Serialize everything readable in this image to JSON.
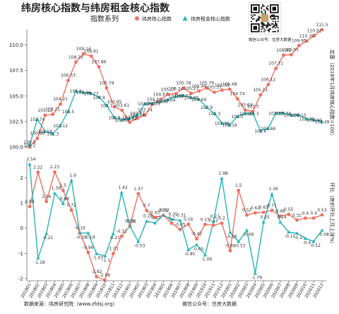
{
  "header": {
    "title": "纬房核心指数与纬房租金核心指数",
    "subtitle": "指数系列"
  },
  "qr": {
    "caption": "微信公众号：住房大数据"
  },
  "footer": {
    "source": "数据来源：纬房研究院（www.zfdsj.org）",
    "wechat": "微信公众号：住房大数据"
  },
  "colors": {
    "sale": "#f07060",
    "rent": "#26b5b5"
  },
  "chart_data": [
    {
      "type": "line",
      "title": "纬房核心指数与纬房租金核心指数",
      "subtitle": "指数系列",
      "ylabel": "定基（2018年1月纬房核心指数=100）",
      "ylim": [
        100,
        111.5
      ],
      "yticks": [
        100.0,
        102.5,
        105.0,
        107.5,
        110.0
      ],
      "legend": "top",
      "grid": false,
      "series": [
        {
          "name": "纬房核心指数",
          "values": [
            100.0,
            100.86,
            103.12,
            103.21,
            104.21,
            106.53,
            108.33,
            109.14,
            108.91,
            107.86,
            105.79,
            103.95,
            103.61,
            102.43,
            102.82,
            103.14,
            104.2,
            104.67,
            105.17,
            105.24,
            105.78,
            105.27,
            105.49,
            105.79,
            105.37,
            105.58,
            105.68,
            104.74,
            103.63,
            103.5,
            105.11,
            106.12,
            107.71,
            109.01,
            109.05,
            109.95,
            110.39,
            110.92,
            111.5
          ],
          "labels": [
            "100.0",
            "100.86",
            "103.12",
            "103.21",
            "104.21",
            "106.53",
            "108.33",
            "109.14",
            "108.91",
            "107.86",
            "105.79",
            "103.95",
            "103.61",
            "102.43",
            "102.82",
            "103.14",
            "104.2",
            "104.67",
            "105.17",
            "105.24",
            "105.78",
            "105.27",
            "105.49",
            "105.79",
            "105.37",
            "105.58",
            "105.68",
            "104.74",
            "103.63",
            "103.5",
            "105.11",
            "106.12",
            "107.71",
            "109.01",
            "109.05",
            "109.95",
            "110.39",
            "110.92",
            "111.5"
          ]
        },
        {
          "name": "纬房租金核心指数",
          "values": [
            100.2,
            102.74,
            101.56,
            101.3,
            102.12,
            103.5,
            105.5,
            105.36,
            105.27,
            104.9,
            104.1,
            102.9,
            102.68,
            102.82,
            103.14,
            104.26,
            104.28,
            104.46,
            104.64,
            104.98,
            105.07,
            104.85,
            104.69,
            103.9,
            103.3,
            102.36,
            102.19,
            103.0,
            103.3,
            103.3,
            101.6,
            101.84,
            103.33,
            103.34,
            103.14,
            103.15,
            102.76,
            102.66,
            102.49
          ],
          "labels": [
            "100.2",
            "102.74",
            "101.56",
            "101.3",
            "102.12",
            "103.5",
            "105.5",
            "105.36",
            "105.27",
            "104.9",
            "104.1",
            "102.9",
            "102.68",
            "102.82",
            "103.14",
            "104.26",
            "104.28",
            "104.46",
            "104.64",
            "104.98",
            "105.07",
            "104.85",
            "104.69",
            "103.9",
            "103.3",
            "102.36",
            "102.19",
            "103.0",
            "103.3",
            "103.3",
            "101.6",
            "101.84",
            "103.33",
            "103.34",
            "103.14",
            "103.15",
            "102.76",
            "102.66",
            "102.49"
          ]
        }
      ]
    },
    {
      "type": "line",
      "ylabel": "环比（房价环比上月上涨%）",
      "ylim": [
        -2,
        2.6
      ],
      "yticks": [
        -2,
        -1,
        0,
        1,
        2
      ],
      "grid": false,
      "categories": [
        "201801",
        "201802",
        "201803",
        "201804",
        "201805",
        "201806",
        "201807",
        "201808",
        "201809",
        "201810",
        "201811",
        "201812",
        "201901",
        "201902",
        "201903",
        "201904",
        "201905",
        "201906",
        "201907",
        "201908",
        "201909",
        "201910",
        "201911",
        "201912",
        "202001",
        "202002",
        "202003",
        "202004",
        "202005",
        "202006",
        "202007",
        "202008",
        "202009",
        "202010",
        "202011",
        "202012"
      ],
      "series": [
        {
          "name": "纬房核心指数",
          "values": [
            0.86,
            2.22,
            1.06,
            2.23,
            1.5,
            0.72,
            -0.19,
            -0.96,
            -1.92,
            -2.06,
            -1.01,
            -0.32,
            0.09,
            1.37,
            0.7,
            0.43,
            0.51,
            0.2,
            -0.05,
            0.16,
            -0.42,
            0.15,
            0.12,
            0.2,
            -0.89,
            1.5,
            0.52,
            0.61,
            0.63,
            0.71,
            0.48,
            0.55,
            0.32,
            0.4,
            0.4,
            0.53
          ],
          "labels": [
            "0.86",
            "2.22",
            "1.06",
            "2.23",
            "1.5",
            "0.72",
            "-0.19",
            "-0.96",
            "-1.92",
            "-2.06",
            "-1.01",
            "-0.32",
            "0.09",
            "1.37",
            "0.7",
            "0.43",
            "0.51",
            "0.2",
            "-0.05",
            "0.16",
            "-0.42",
            "0.15",
            "0.12",
            "0.2",
            "-0.89",
            "1.5",
            "0.52",
            "0.61",
            "0.63",
            "0.71",
            "0.48",
            "0.55",
            "0.32",
            "0.4",
            "0.4",
            "0.53"
          ]
        },
        {
          "name": "纬房租金核心指数",
          "values": [
            2.54,
            -1.18,
            -0.21,
            1.39,
            0.98,
            1.9,
            -0.19,
            -0.19,
            -1.01,
            -1.1,
            -0.21,
            1.42,
            0.08,
            -0.53,
            0.28,
            0.21,
            0.52,
            0.35,
            0.31,
            -0.85,
            -0.65,
            -1.06,
            0.27,
            1.98,
            -0.16,
            -0.53,
            -0.08,
            -1.79,
            0.25,
            1.36,
            0.24,
            -0.15,
            -0.2,
            -0.4,
            -0.52,
            -0.08
          ],
          "labels": [
            "2.54",
            "-1.18",
            "-0.21",
            "1.39",
            "0.98",
            "1.9",
            "-0.19",
            "-0.19",
            "-1.01",
            "-1.1",
            "-0.21",
            "1.42",
            "0.08",
            "-0.53",
            "0.28",
            "0.21",
            "0.52",
            "0.35",
            "0.31",
            "-0.85",
            "-0.65",
            "-1.06",
            "0.27",
            "1.98",
            "-0.16",
            "-0.53",
            "-0.08",
            "-1.79",
            "0.25",
            "1.36",
            "0.24",
            "-0.15",
            "-0.2",
            "-0.4",
            "-0.52",
            "-0.08"
          ]
        }
      ]
    }
  ]
}
